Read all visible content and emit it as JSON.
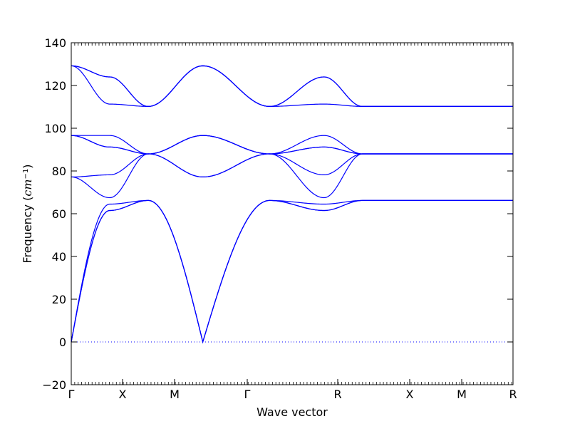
{
  "chart_data": {
    "type": "line",
    "title": "",
    "xlabel": "Wave vector",
    "ylabel_text": "Frequency (",
    "ylabel_unit": "cm",
    "ylabel_exp": "−1",
    "ylabel_close": ")",
    "ylabel": "Frequency (cm^-1)",
    "ylim": [
      -20,
      140
    ],
    "yticks": [
      -20,
      0,
      20,
      40,
      60,
      80,
      100,
      120,
      140
    ],
    "ytick_labels": [
      "−20",
      "0",
      "20",
      "40",
      "60",
      "80",
      "100",
      "120",
      "140"
    ],
    "xlim": [
      0,
      5.732
    ],
    "high_symmetry_points": [
      {
        "label": "Γ",
        "x": 0.0
      },
      {
        "label": "X",
        "x": 0.5
      },
      {
        "label": "M",
        "x": 1.0
      },
      {
        "label": "Γ",
        "x": 1.707
      },
      {
        "label": "R",
        "x": 2.573
      },
      {
        "label": "X",
        "x": 3.28
      },
      {
        "label": "M",
        "x": 3.78
      },
      {
        "label": "R",
        "x": 4.28
      }
    ],
    "zero_line": true,
    "line_color": "#0000ff",
    "series": [
      {
        "x": [
          0,
          0.5,
          1.0,
          1.707,
          2.573,
          3.28,
          3.78,
          4.28
        ],
        "values": [
          0,
          61.5,
          66.2,
          0,
          66.2,
          61.5,
          66.2,
          66.2
        ]
      },
      {
        "x": [
          0,
          0.5,
          1.0,
          1.707,
          2.573,
          3.28,
          3.78,
          4.28
        ],
        "values": [
          0,
          61.5,
          66.2,
          0,
          66.2,
          61.5,
          66.2,
          66.2
        ]
      },
      {
        "x": [
          0,
          0.5,
          1.0,
          1.707,
          2.573,
          3.28,
          3.78,
          4.28
        ],
        "values": [
          0,
          64.5,
          66.2,
          0,
          66.2,
          64.5,
          66.2,
          66.2
        ]
      },
      {
        "x": [
          0,
          0.5,
          1.0,
          1.707,
          2.573,
          3.28,
          3.78,
          4.28
        ],
        "values": [
          77.2,
          67.5,
          88.0,
          77.2,
          88.0,
          67.5,
          88.0,
          88.0
        ]
      },
      {
        "x": [
          0,
          0.5,
          1.0,
          1.707,
          2.573,
          3.28,
          3.78,
          4.28
        ],
        "values": [
          77.2,
          78.2,
          88.0,
          77.2,
          88.0,
          78.2,
          88.0,
          88.0
        ]
      },
      {
        "x": [
          0,
          0.5,
          1.0,
          1.707,
          2.573,
          3.28,
          3.78,
          4.28
        ],
        "values": [
          96.6,
          91.2,
          88.0,
          96.6,
          88.0,
          91.2,
          88.0,
          88.0
        ]
      },
      {
        "x": [
          0,
          0.5,
          1.0,
          1.707,
          2.573,
          3.28,
          3.78,
          4.28
        ],
        "values": [
          96.6,
          91.2,
          88.0,
          96.6,
          88.0,
          91.2,
          88.0,
          88.0
        ]
      },
      {
        "x": [
          0,
          0.5,
          1.0,
          1.707,
          2.573,
          3.28,
          3.78,
          4.28
        ],
        "values": [
          96.6,
          96.6,
          88.0,
          96.6,
          88.0,
          96.6,
          88.0,
          88.0
        ]
      },
      {
        "x": [
          0,
          0.5,
          1.0,
          1.707,
          2.573,
          3.28,
          3.78,
          4.28
        ],
        "values": [
          129.2,
          111.3,
          110.2,
          129.2,
          110.2,
          111.3,
          110.2,
          110.2
        ]
      },
      {
        "x": [
          0,
          0.5,
          1.0,
          1.707,
          2.573,
          3.28,
          3.78,
          4.28
        ],
        "values": [
          129.2,
          124.0,
          110.2,
          129.2,
          110.2,
          124.0,
          110.2,
          110.2
        ]
      },
      {
        "x": [
          0,
          0.5,
          1.0,
          1.707,
          2.573,
          3.28,
          3.78,
          4.28
        ],
        "values": [
          129.2,
          124.0,
          110.2,
          129.2,
          110.2,
          124.0,
          110.2,
          110.2
        ]
      }
    ]
  }
}
